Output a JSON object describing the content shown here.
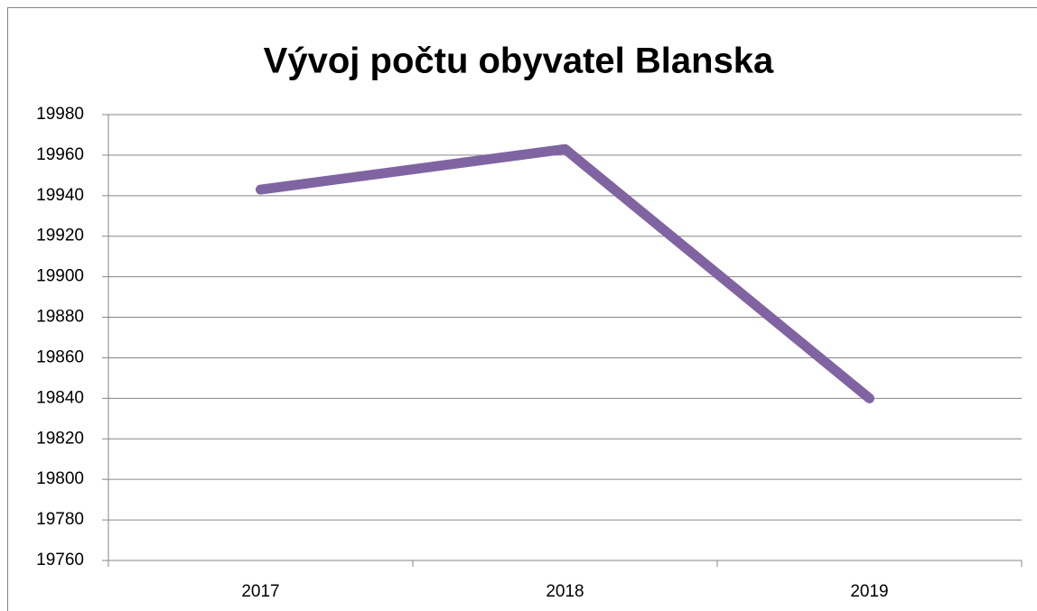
{
  "chart_data": {
    "type": "line",
    "title": "Vývoj počtu obyvatel Blanska",
    "categories": [
      "2017",
      "2018",
      "2019"
    ],
    "values": [
      19943,
      19963,
      19840
    ],
    "color": "#8064a2",
    "ylim": [
      19760,
      19980
    ],
    "yticks": [
      19760,
      19780,
      19800,
      19820,
      19840,
      19860,
      19880,
      19900,
      19920,
      19940,
      19960,
      19980
    ],
    "grid": true
  }
}
